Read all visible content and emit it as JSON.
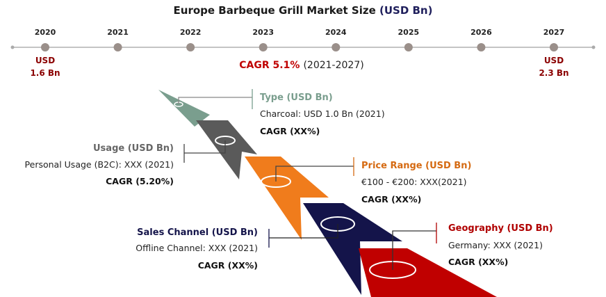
{
  "chart_data": {
    "type": "timeline-infographic",
    "title": "Europe Barbeque Grill Market Size",
    "title_unit": "(USD Bn)",
    "years": [
      "2020",
      "2021",
      "2022",
      "2023",
      "2024",
      "2025",
      "2026",
      "2027"
    ],
    "start": {
      "year": "2020",
      "unit": "USD",
      "value": "1.6 Bn"
    },
    "end": {
      "year": "2027",
      "unit": "USD",
      "value": "2.3 Bn"
    },
    "cagr": {
      "label": "CAGR 5.1%",
      "period": "(2021-2027)"
    },
    "segments": [
      {
        "key": "type",
        "color": "#7a9e8e",
        "title_color": "#7a9e8e",
        "title": "Type (USD Bn)",
        "detail": "Charcoal: USD 1.0 Bn (2021)",
        "cagr": "CAGR (XX%)"
      },
      {
        "key": "usage",
        "color": "#5a5a5a",
        "title_color": "#666666",
        "title": "Usage (USD Bn)",
        "detail": "Personal Usage (B2C): XXX (2021)",
        "cagr": "CAGR (5.20%)"
      },
      {
        "key": "price",
        "color": "#f07c1c",
        "title_color": "#d56a12",
        "title": "Price Range (USD Bn)",
        "detail": "€100 - €200: XXX(2021)",
        "cagr": "CAGR (XX%)"
      },
      {
        "key": "channel",
        "color": "#14144a",
        "title_color": "#14144a",
        "title": "Sales Channel (USD Bn)",
        "detail": "Offline Channel: XXX (2021)",
        "cagr": "CAGR (XX%)"
      },
      {
        "key": "geo",
        "color": "#c00000",
        "title_color": "#b00000",
        "title": "Geography (USD Bn)",
        "detail": "Germany: XXX (2021)",
        "cagr": "CAGR (XX%)"
      }
    ]
  }
}
